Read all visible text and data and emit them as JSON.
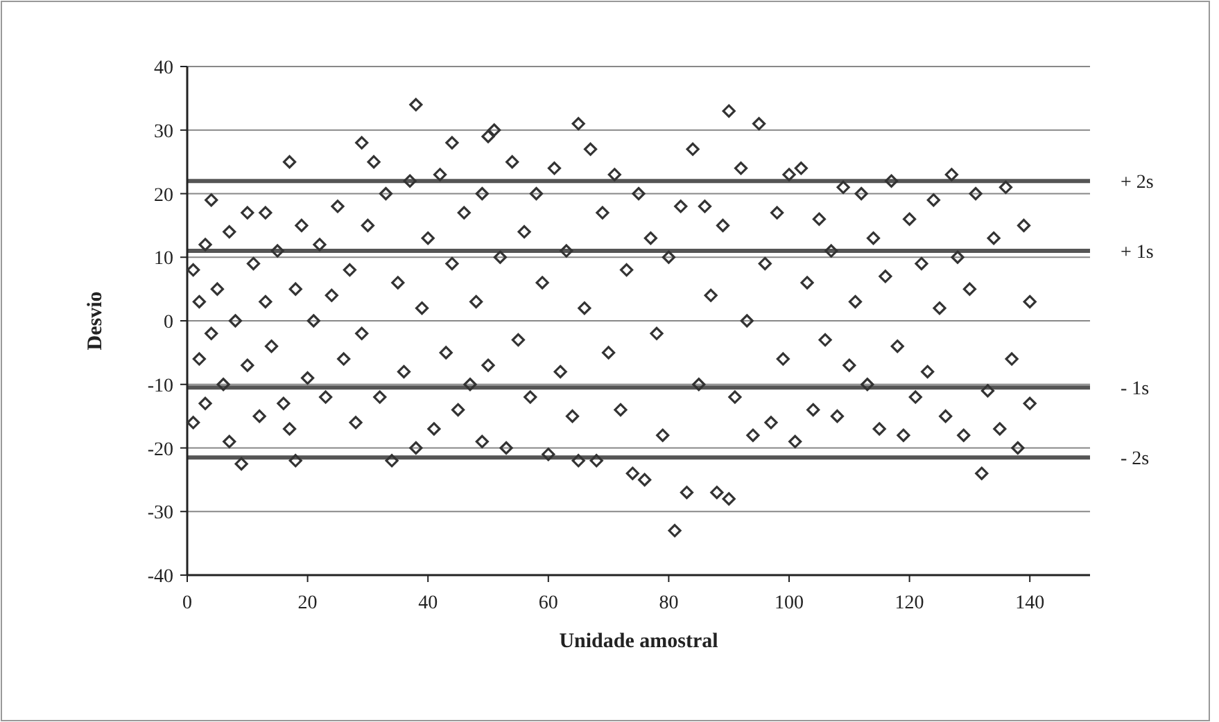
{
  "chart_data": {
    "type": "scatter",
    "xlabel": "Unidade amostral",
    "ylabel": "Desvio",
    "xlim": [
      0,
      150
    ],
    "xticks": [
      0,
      20,
      40,
      60,
      80,
      100,
      120,
      140
    ],
    "ylim": [
      -40,
      40
    ],
    "yticks": [
      -40,
      -30,
      -20,
      -10,
      0,
      10,
      20,
      30,
      40
    ],
    "grid": "y",
    "marker": "diamond",
    "series": [
      {
        "color": "#333333",
        "x": [
          1,
          1,
          2,
          2,
          3,
          3,
          4,
          4,
          5,
          6,
          7,
          7,
          8,
          9,
          10,
          10,
          11,
          12,
          13,
          13,
          14,
          15,
          16,
          17,
          17,
          18,
          18,
          19,
          20,
          21,
          22,
          23,
          24,
          25,
          26,
          27,
          28,
          29,
          29,
          30,
          31,
          32,
          33,
          34,
          35,
          36,
          37,
          38,
          38,
          39,
          40,
          41,
          42,
          43,
          44,
          44,
          45,
          46,
          47,
          48,
          49,
          49,
          50,
          50,
          51,
          52,
          53,
          54,
          55,
          56,
          57,
          58,
          59,
          60,
          61,
          62,
          63,
          64,
          65,
          65,
          66,
          67,
          68,
          69,
          70,
          71,
          72,
          73,
          74,
          75,
          76,
          77,
          78,
          79,
          80,
          81,
          82,
          83,
          84,
          85,
          86,
          87,
          88,
          89,
          90,
          90,
          91,
          92,
          93,
          94,
          95,
          96,
          97,
          98,
          99,
          100,
          101,
          102,
          103,
          104,
          105,
          106,
          107,
          108,
          109,
          110,
          111,
          112,
          113,
          114,
          115,
          116,
          117,
          118,
          119,
          120,
          121,
          122,
          123,
          124,
          125,
          126,
          127,
          128,
          129,
          130,
          131,
          132,
          133,
          134,
          135,
          136,
          137,
          138,
          139,
          140,
          140
        ],
        "values": [
          8,
          -16,
          3,
          -6,
          12,
          -13,
          19,
          -2,
          5,
          -10,
          14,
          -19,
          0,
          -22.5,
          17,
          -7,
          9,
          -15,
          17,
          3,
          -4,
          11,
          -13,
          25,
          -17,
          -22,
          5,
          15,
          -9,
          0,
          12,
          -12,
          4,
          18,
          -6,
          8,
          -16,
          28,
          -2,
          15,
          25,
          -12,
          20,
          -22,
          6,
          -8,
          22,
          34,
          -20,
          2,
          13,
          -17,
          23,
          -5,
          28,
          9,
          -14,
          17,
          -10,
          3,
          20,
          -19,
          29,
          -7,
          30,
          10,
          -20,
          25,
          -3,
          14,
          -12,
          20,
          6,
          -21,
          24,
          -8,
          11,
          -15,
          31,
          -22,
          2,
          27,
          -22,
          17,
          -5,
          23,
          -14,
          8,
          -24,
          20,
          -25,
          13,
          -2,
          -18,
          10,
          -33,
          18,
          -27,
          27,
          -10,
          18,
          4,
          -27,
          15,
          -28,
          33,
          -12,
          24,
          0,
          -18,
          31,
          9,
          -16,
          17,
          -6,
          23,
          -19,
          24,
          6,
          -14,
          16,
          -3,
          11,
          -15,
          21,
          -7,
          3,
          20,
          -10,
          13,
          -17,
          7,
          22,
          -4,
          -18,
          16,
          -12,
          9,
          -8,
          19,
          2,
          -15,
          23,
          10,
          -18,
          5,
          20,
          -24,
          -11,
          13,
          -17,
          21,
          -6,
          -20,
          15,
          3,
          -13
        ]
      }
    ],
    "ref_lines": [
      {
        "axis": "y",
        "value": 22,
        "label": "+ 2s",
        "color": "#555555"
      },
      {
        "axis": "y",
        "value": 11,
        "label": "+ 1s",
        "color": "#555555"
      },
      {
        "axis": "y",
        "value": -10.5,
        "label": "- 1s",
        "color": "#555555"
      },
      {
        "axis": "y",
        "value": -21.5,
        "label": "- 2s",
        "color": "#555555"
      }
    ]
  }
}
